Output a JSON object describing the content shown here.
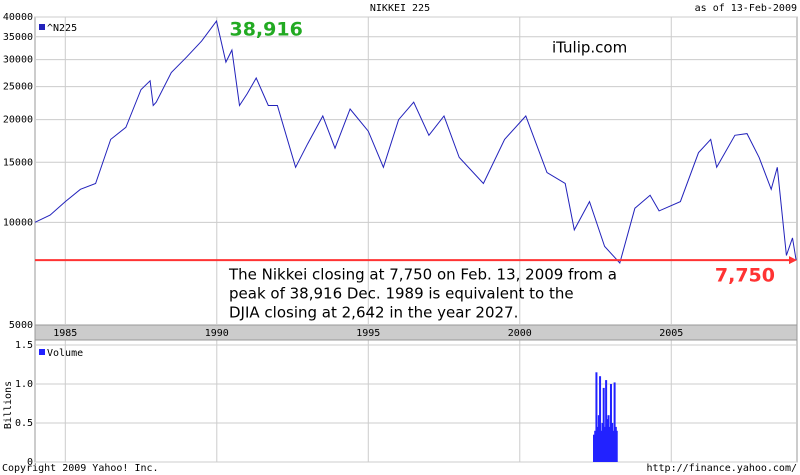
{
  "chart_data": [
    {
      "type": "line",
      "title": "NIKKEI 225",
      "subtitle": "as of 13-Feb-2009",
      "x": [
        1984.0,
        1984.5,
        1985.0,
        1985.5,
        1986.0,
        1986.5,
        1987.0,
        1987.5,
        1987.8,
        1987.9,
        1988.0,
        1988.5,
        1989.0,
        1989.5,
        1989.99,
        1990.3,
        1990.5,
        1990.75,
        1991.0,
        1991.3,
        1991.7,
        1992.0,
        1992.6,
        1993.0,
        1993.5,
        1993.9,
        1994.4,
        1995.0,
        1995.5,
        1996.0,
        1996.5,
        1997.0,
        1997.5,
        1998.0,
        1998.8,
        1999.5,
        2000.2,
        2000.9,
        2001.5,
        2001.8,
        2002.3,
        2002.8,
        2003.3,
        2003.8,
        2004.3,
        2004.6,
        2005.3,
        2005.9,
        2006.3,
        2006.5,
        2007.1,
        2007.5,
        2007.9,
        2008.3,
        2008.5,
        2008.8,
        2009.0,
        2009.12
      ],
      "series": [
        {
          "name": "^N225",
          "color": "#2222bb",
          "values": [
            10000,
            10500,
            11500,
            12500,
            13000,
            17500,
            19000,
            24500,
            26000,
            22000,
            22500,
            27500,
            30500,
            34000,
            38916,
            29500,
            32000,
            22000,
            23800,
            26500,
            22000,
            22000,
            14500,
            17000,
            20500,
            16500,
            21500,
            18500,
            14500,
            20000,
            22500,
            18000,
            20500,
            15500,
            13000,
            17500,
            20500,
            14000,
            13000,
            9500,
            11500,
            8500,
            7600,
            11000,
            12000,
            10800,
            11500,
            16000,
            17500,
            14500,
            18000,
            18200,
            15500,
            12500,
            14500,
            8000,
            9000,
            7750
          ]
        }
      ],
      "xlim": [
        1984.0,
        2009.15
      ],
      "xticks": [
        1985,
        1990,
        1995,
        2000,
        2005
      ],
      "ylim": [
        5000,
        40000
      ],
      "yticks": [
        5000,
        10000,
        15000,
        20000,
        25000,
        30000,
        35000,
        40000
      ],
      "log_scale": true,
      "grid": true,
      "peak": {
        "value": 38916,
        "label": "38,916",
        "color": "#22aa22"
      },
      "reference_line": {
        "value": 7750,
        "label": "7,750",
        "color": "#ff3333"
      },
      "annotations": [
        "iTulip.com",
        "The Nikkei closing at 7,750 on Feb. 13, 2009 from a",
        "peak of 38,916 Dec. 1989 is equivalent to the",
        "DJIA closing at 2,642 in the year 2027."
      ]
    },
    {
      "type": "bar",
      "y_label": "Billions",
      "x": [
        2002.45,
        2002.49,
        2002.53,
        2002.57,
        2002.61,
        2002.65,
        2002.69,
        2002.73,
        2002.77,
        2002.81,
        2002.85,
        2002.89,
        2002.93,
        2002.97,
        2003.01,
        2003.05,
        2003.09,
        2003.13,
        2003.17,
        2003.2
      ],
      "series": [
        {
          "name": "Volume",
          "color": "#2222ff",
          "values": [
            0.35,
            0.4,
            1.15,
            0.45,
            0.6,
            1.1,
            0.4,
            0.5,
            0.95,
            0.45,
            1.05,
            0.55,
            0.6,
            0.45,
            1.0,
            0.5,
            0.4,
            1.02,
            0.45,
            0.4
          ]
        }
      ],
      "ylim": [
        0,
        1.5
      ],
      "yticks": [
        0,
        0.5,
        {
          "value": 1,
          "label": "1.0"
        },
        1.5
      ],
      "grid": true
    }
  ],
  "footer": {
    "left": "Copyright 2009 Yahoo! Inc.",
    "right": "http://finance.yahoo.com/"
  }
}
